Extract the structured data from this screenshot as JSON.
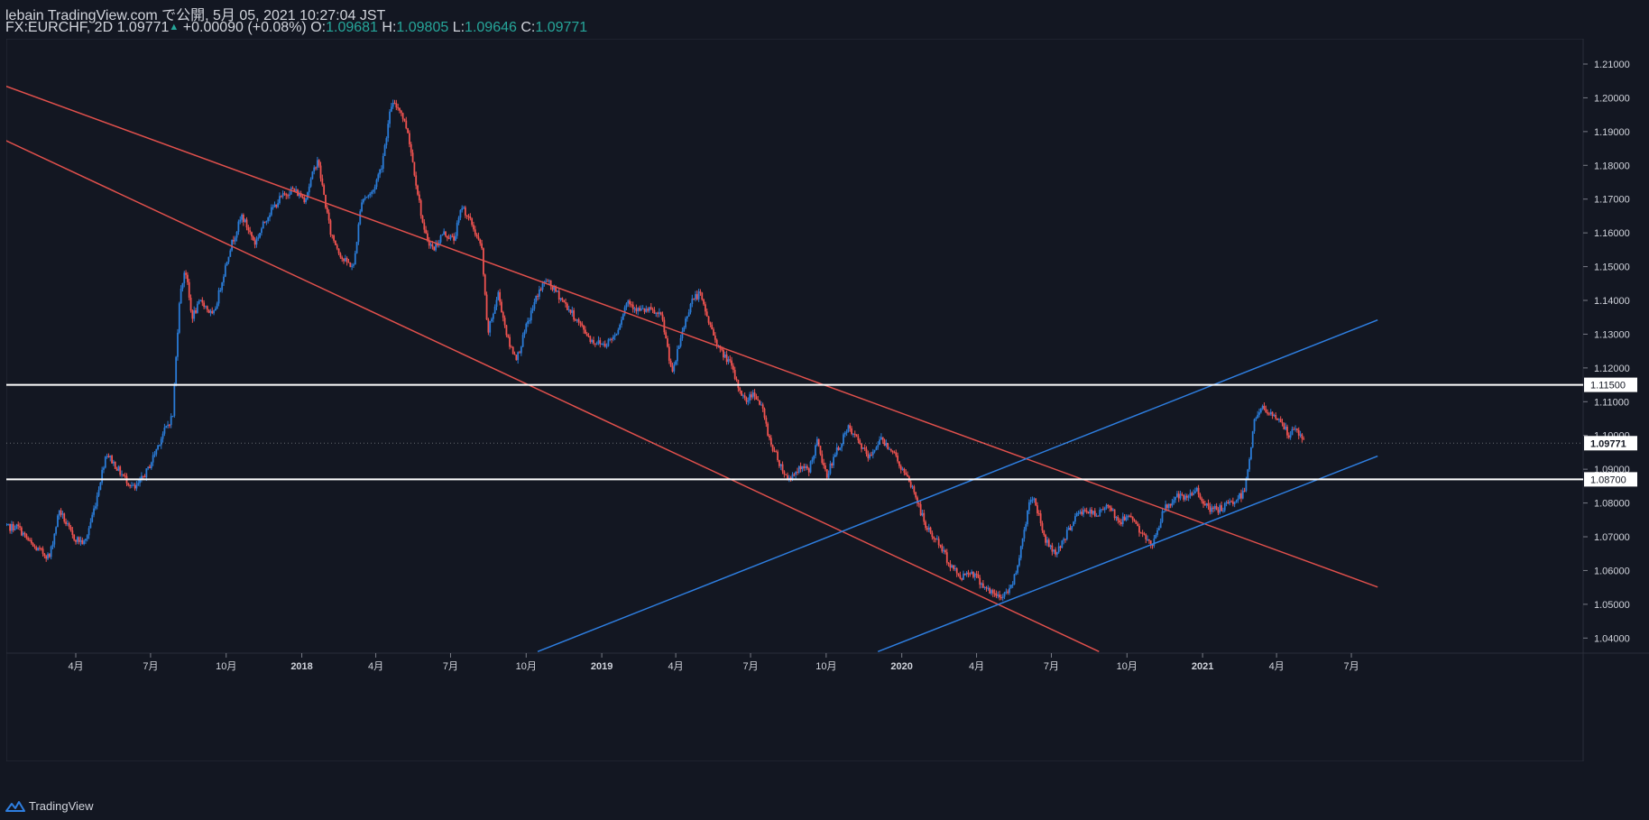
{
  "header": {
    "publisher_line": "lebain TradingView.com で公開, 5月 05, 2021 10:27:04 JST",
    "symbol": "FX:EURCHF, 2D",
    "last": "1.09771",
    "change_icon": "triangle-up-icon",
    "change": "+0.00090 (+0.08%)",
    "o_label": "O:",
    "o": "1.09681",
    "h_label": "H:",
    "h": "1.09805",
    "l_label": "L:",
    "l": "1.09646",
    "c_label": "C:",
    "c": "1.09771"
  },
  "footer": {
    "brand": "TradingView",
    "icon": "tradingview-logo-icon"
  },
  "colors": {
    "background": "#131722",
    "up": "#2a7bd6",
    "down": "#ef5350",
    "blue_line": "#2e7ee0",
    "red_line": "#e0504c",
    "horizontal_line": "#ffffff",
    "text": "#d1d4dc",
    "axis_line": "#2a2e39"
  },
  "chart_data": {
    "type": "candlestick",
    "symbol": "FX:EURCHF",
    "interval": "2D",
    "ylim": [
      1.036,
      1.213
    ],
    "y_ticks": [
      "1.21000",
      "1.20000",
      "1.19000",
      "1.18000",
      "1.17000",
      "1.16000",
      "1.15000",
      "1.14000",
      "1.13000",
      "1.12000",
      "1.11000",
      "1.10000",
      "1.09000",
      "1.08000",
      "1.07000",
      "1.06000",
      "1.05000",
      "1.04000"
    ],
    "x_ticks": [
      {
        "label": "4月",
        "date": "2017-04-01"
      },
      {
        "label": "7月",
        "date": "2017-07-01"
      },
      {
        "label": "10月",
        "date": "2017-10-01"
      },
      {
        "label": "2018",
        "date": "2018-01-01"
      },
      {
        "label": "4月",
        "date": "2018-04-01"
      },
      {
        "label": "7月",
        "date": "2018-07-01"
      },
      {
        "label": "10月",
        "date": "2018-10-01"
      },
      {
        "label": "2019",
        "date": "2019-01-01"
      },
      {
        "label": "4月",
        "date": "2019-04-01"
      },
      {
        "label": "7月",
        "date": "2019-07-01"
      },
      {
        "label": "10月",
        "date": "2019-10-01"
      },
      {
        "label": "2020",
        "date": "2020-01-01"
      },
      {
        "label": "4月",
        "date": "2020-04-01"
      },
      {
        "label": "7月",
        "date": "2020-07-01"
      },
      {
        "label": "10月",
        "date": "2020-10-01"
      },
      {
        "label": "2021",
        "date": "2021-01-01"
      },
      {
        "label": "4月",
        "date": "2021-04-01"
      },
      {
        "label": "7月",
        "date": "2021-07-01"
      }
    ],
    "price_path": [
      [
        "2017-01-01",
        1.0725
      ],
      [
        "2017-01-20",
        1.073
      ],
      [
        "2017-02-08",
        1.067
      ],
      [
        "2017-02-28",
        1.064
      ],
      [
        "2017-03-12",
        1.078
      ],
      [
        "2017-03-28",
        1.07
      ],
      [
        "2017-04-12",
        1.068
      ],
      [
        "2017-04-25",
        1.08
      ],
      [
        "2017-05-08",
        1.095
      ],
      [
        "2017-05-25",
        1.089
      ],
      [
        "2017-06-12",
        1.084
      ],
      [
        "2017-06-28",
        1.09
      ],
      [
        "2017-07-15",
        1.1
      ],
      [
        "2017-07-28",
        1.106
      ],
      [
        "2017-08-05",
        1.14
      ],
      [
        "2017-08-12",
        1.15
      ],
      [
        "2017-08-20",
        1.135
      ],
      [
        "2017-09-01",
        1.14
      ],
      [
        "2017-09-15",
        1.135
      ],
      [
        "2017-09-25",
        1.145
      ],
      [
        "2017-10-05",
        1.155
      ],
      [
        "2017-10-20",
        1.165
      ],
      [
        "2017-11-05",
        1.157
      ],
      [
        "2017-11-20",
        1.165
      ],
      [
        "2017-12-05",
        1.17
      ],
      [
        "2017-12-20",
        1.173
      ],
      [
        "2018-01-05",
        1.17
      ],
      [
        "2018-01-20",
        1.182
      ],
      [
        "2018-02-05",
        1.16
      ],
      [
        "2018-02-20",
        1.152
      ],
      [
        "2018-03-05",
        1.15
      ],
      [
        "2018-03-15",
        1.17
      ],
      [
        "2018-03-28",
        1.172
      ],
      [
        "2018-04-08",
        1.18
      ],
      [
        "2018-04-20",
        1.198
      ],
      [
        "2018-04-30",
        1.197
      ],
      [
        "2018-05-10",
        1.19
      ],
      [
        "2018-05-20",
        1.175
      ],
      [
        "2018-05-30",
        1.16
      ],
      [
        "2018-06-10",
        1.155
      ],
      [
        "2018-06-22",
        1.16
      ],
      [
        "2018-07-05",
        1.158
      ],
      [
        "2018-07-15",
        1.168
      ],
      [
        "2018-07-28",
        1.162
      ],
      [
        "2018-08-08",
        1.155
      ],
      [
        "2018-08-15",
        1.13
      ],
      [
        "2018-08-28",
        1.142
      ],
      [
        "2018-09-10",
        1.127
      ],
      [
        "2018-09-20",
        1.123
      ],
      [
        "2018-10-01",
        1.132
      ],
      [
        "2018-10-15",
        1.142
      ],
      [
        "2018-10-25",
        1.146
      ],
      [
        "2018-11-08",
        1.142
      ],
      [
        "2018-11-20",
        1.138
      ],
      [
        "2018-12-05",
        1.133
      ],
      [
        "2018-12-20",
        1.128
      ],
      [
        "2019-01-05",
        1.127
      ],
      [
        "2019-01-18",
        1.13
      ],
      [
        "2019-02-01",
        1.14
      ],
      [
        "2019-02-15",
        1.137
      ],
      [
        "2019-03-01",
        1.137
      ],
      [
        "2019-03-15",
        1.135
      ],
      [
        "2019-03-28",
        1.118
      ],
      [
        "2019-04-08",
        1.13
      ],
      [
        "2019-04-20",
        1.14
      ],
      [
        "2019-04-30",
        1.142
      ],
      [
        "2019-05-12",
        1.133
      ],
      [
        "2019-05-25",
        1.125
      ],
      [
        "2019-06-05",
        1.122
      ],
      [
        "2019-06-15",
        1.115
      ],
      [
        "2019-06-25",
        1.11
      ],
      [
        "2019-07-05",
        1.113
      ],
      [
        "2019-07-15",
        1.108
      ],
      [
        "2019-07-25",
        1.098
      ],
      [
        "2019-08-05",
        1.092
      ],
      [
        "2019-08-15",
        1.087
      ],
      [
        "2019-08-28",
        1.09
      ],
      [
        "2019-09-10",
        1.09
      ],
      [
        "2019-09-20",
        1.098
      ],
      [
        "2019-10-01",
        1.088
      ],
      [
        "2019-10-15",
        1.096
      ],
      [
        "2019-10-28",
        1.102
      ],
      [
        "2019-11-10",
        1.098
      ],
      [
        "2019-11-22",
        1.093
      ],
      [
        "2019-12-05",
        1.099
      ],
      [
        "2019-12-20",
        1.096
      ],
      [
        "2020-01-01",
        1.09
      ],
      [
        "2020-01-15",
        1.084
      ],
      [
        "2020-01-30",
        1.073
      ],
      [
        "2020-02-15",
        1.068
      ],
      [
        "2020-02-28",
        1.062
      ],
      [
        "2020-03-12",
        1.058
      ],
      [
        "2020-03-25",
        1.06
      ],
      [
        "2020-04-08",
        1.056
      ],
      [
        "2020-04-20",
        1.053
      ],
      [
        "2020-05-01",
        1.052
      ],
      [
        "2020-05-15",
        1.056
      ],
      [
        "2020-05-28",
        1.07
      ],
      [
        "2020-06-05",
        1.082
      ],
      [
        "2020-06-12",
        1.08
      ],
      [
        "2020-06-22",
        1.07
      ],
      [
        "2020-07-05",
        1.065
      ],
      [
        "2020-07-18",
        1.07
      ],
      [
        "2020-07-30",
        1.076
      ],
      [
        "2020-08-12",
        1.078
      ],
      [
        "2020-08-25",
        1.076
      ],
      [
        "2020-09-08",
        1.08
      ],
      [
        "2020-09-22",
        1.074
      ],
      [
        "2020-10-05",
        1.077
      ],
      [
        "2020-10-20",
        1.07
      ],
      [
        "2020-11-01",
        1.068
      ],
      [
        "2020-11-15",
        1.078
      ],
      [
        "2020-11-30",
        1.082
      ],
      [
        "2020-12-12",
        1.081
      ],
      [
        "2020-12-25",
        1.084
      ],
      [
        "2021-01-08",
        1.078
      ],
      [
        "2021-01-20",
        1.078
      ],
      [
        "2021-02-05",
        1.08
      ],
      [
        "2021-02-20",
        1.083
      ],
      [
        "2021-02-28",
        1.095
      ],
      [
        "2021-03-05",
        1.105
      ],
      [
        "2021-03-15",
        1.108
      ],
      [
        "2021-03-25",
        1.106
      ],
      [
        "2021-04-05",
        1.105
      ],
      [
        "2021-04-15",
        1.1
      ],
      [
        "2021-04-25",
        1.102
      ],
      [
        "2021-05-05",
        1.0977
      ]
    ],
    "last_date": "2021-05-05",
    "horizontal_levels": [
      {
        "price": 1.115,
        "label": "1.11500"
      },
      {
        "price": 1.087,
        "label": "1.08700"
      }
    ],
    "current_price": {
      "price": 1.09771,
      "label": "1.09771"
    },
    "trend_lines": [
      {
        "color": "red",
        "from": [
          "2016-04-08",
          1.2277
        ],
        "to": [
          "2021-08-02",
          1.0551
        ]
      },
      {
        "color": "red",
        "from": [
          "2016-12-10",
          1.1904
        ],
        "to": [
          "2020-08-28",
          1.036
        ]
      },
      {
        "color": "blue",
        "from": [
          "2018-10-15",
          1.036
        ],
        "to": [
          "2021-08-02",
          1.1342
        ]
      },
      {
        "color": "blue",
        "from": [
          "2019-12-03",
          1.036
        ],
        "to": [
          "2021-08-02",
          1.0939
        ]
      }
    ]
  }
}
